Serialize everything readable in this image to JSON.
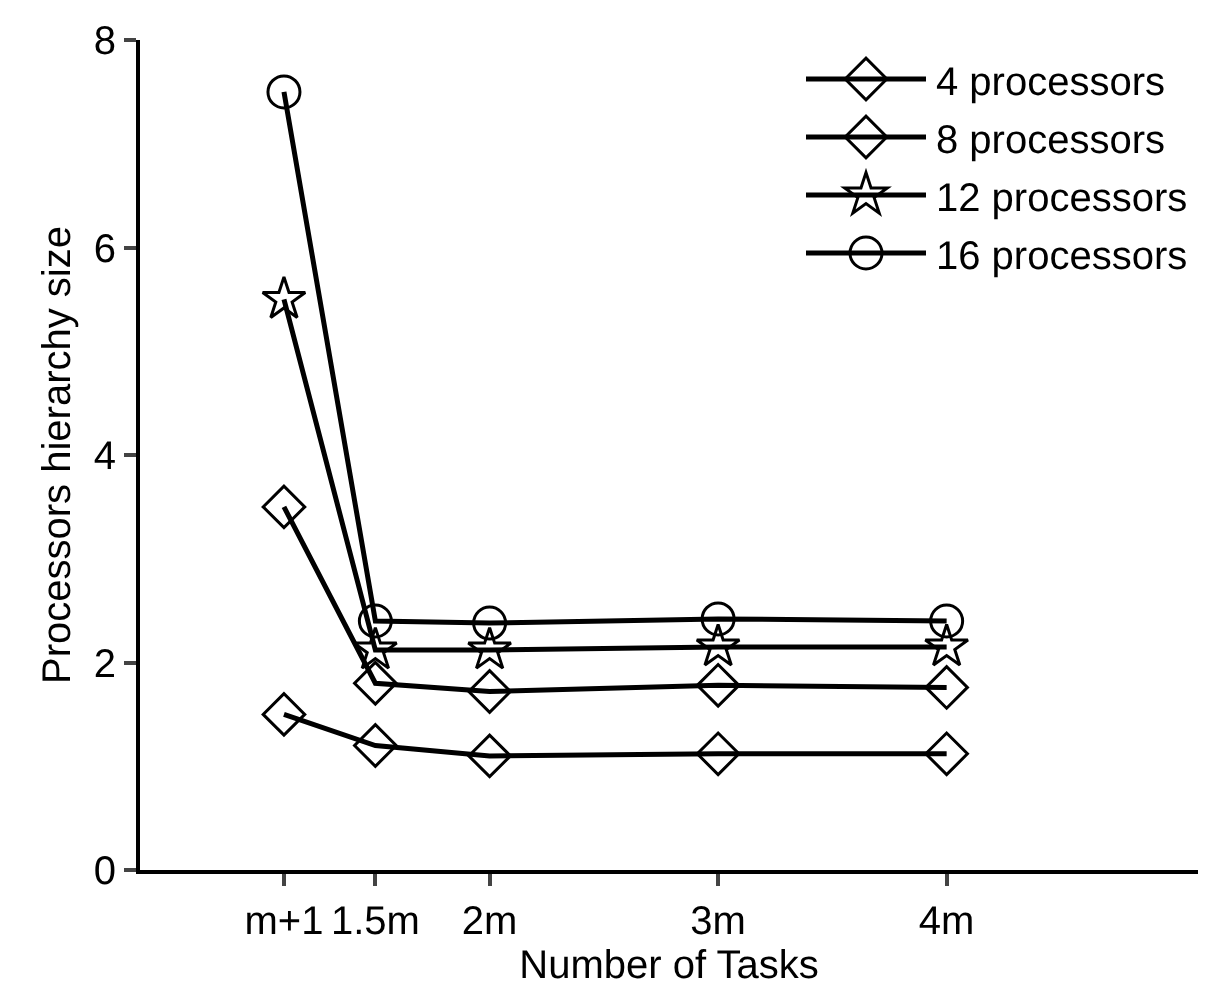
{
  "chart_data": {
    "type": "line",
    "xlabel": "Number of Tasks",
    "ylabel": "Processors hierarchy size",
    "x": [
      1.1,
      1.5,
      2,
      3,
      4
    ],
    "xlim": [
      0.47,
      5.1
    ],
    "xticks": [
      {
        "value": 1.1,
        "label": "m+1"
      },
      {
        "value": 1.5,
        "label": "1.5m"
      },
      {
        "value": 2,
        "label": "2m"
      },
      {
        "value": 3,
        "label": "3m"
      },
      {
        "value": 4,
        "label": "4m"
      }
    ],
    "ylim": [
      0,
      8
    ],
    "yticks": [
      0,
      2,
      4,
      6,
      8
    ],
    "grid": false,
    "legend": "top right",
    "line_style": "solid",
    "series": [
      {
        "name": "4 processors",
        "color": "#000000",
        "marker": "diamond",
        "values": [
          1.5,
          1.2,
          1.1,
          1.12,
          1.12
        ]
      },
      {
        "name": "8 processors",
        "color": "#000000",
        "marker": "diamond",
        "values": [
          3.5,
          1.8,
          1.72,
          1.78,
          1.76
        ]
      },
      {
        "name": "12 processors",
        "color": "#000000",
        "marker": "star",
        "values": [
          5.5,
          2.12,
          2.12,
          2.15,
          2.15
        ]
      },
      {
        "name": "16 processors",
        "color": "#000000",
        "marker": "circle",
        "values": [
          7.5,
          2.4,
          2.38,
          2.42,
          2.4
        ]
      }
    ]
  }
}
